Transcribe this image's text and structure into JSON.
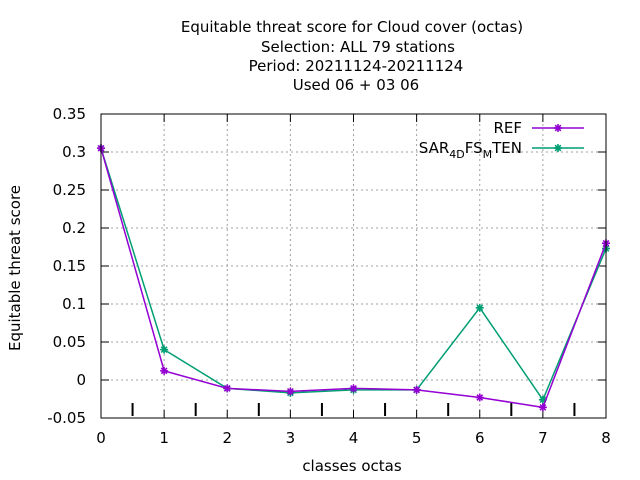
{
  "chart_data": {
    "type": "line",
    "title_lines": [
      "Equitable threat score  for Cloud cover (octas)",
      "Selection: ALL     79 stations",
      "Period: 20211124-20211124",
      "Used  06 + 03 06"
    ],
    "xlabel": "classes octas",
    "ylabel": "Equitable threat score",
    "xlim": [
      0,
      8
    ],
    "ylim": [
      -0.05,
      0.35
    ],
    "x_ticks": [
      "0",
      "1",
      "2",
      "3",
      "4",
      "5",
      "6",
      "7",
      "8"
    ],
    "y_ticks": [
      "-0.05",
      "0",
      "0.05",
      "0.1",
      "0.15",
      "0.2",
      "0.25",
      "0.3",
      "0.35"
    ],
    "grid": true,
    "legend_position": "top-right",
    "x": [
      0,
      1,
      2,
      3,
      4,
      5,
      6,
      7,
      8
    ],
    "minor_ticks_x": [
      0.5,
      1.5,
      2.5,
      3.5,
      4.5,
      5.5,
      6.5,
      7.5
    ],
    "series": [
      {
        "name": "REF",
        "color": "#9400d3",
        "values": [
          0.305,
          0.012,
          -0.011,
          -0.015,
          -0.011,
          -0.013,
          -0.023,
          -0.036,
          0.18
        ]
      },
      {
        "name_parts": {
          "p1": "SAR",
          "sub1": "4D",
          "p2": "FS",
          "sub2": "M",
          "p3": "TEN"
        },
        "color": "#009e73",
        "values": [
          0.305,
          0.04,
          -0.011,
          -0.017,
          -0.013,
          -0.013,
          0.095,
          -0.026,
          0.173
        ]
      }
    ]
  }
}
